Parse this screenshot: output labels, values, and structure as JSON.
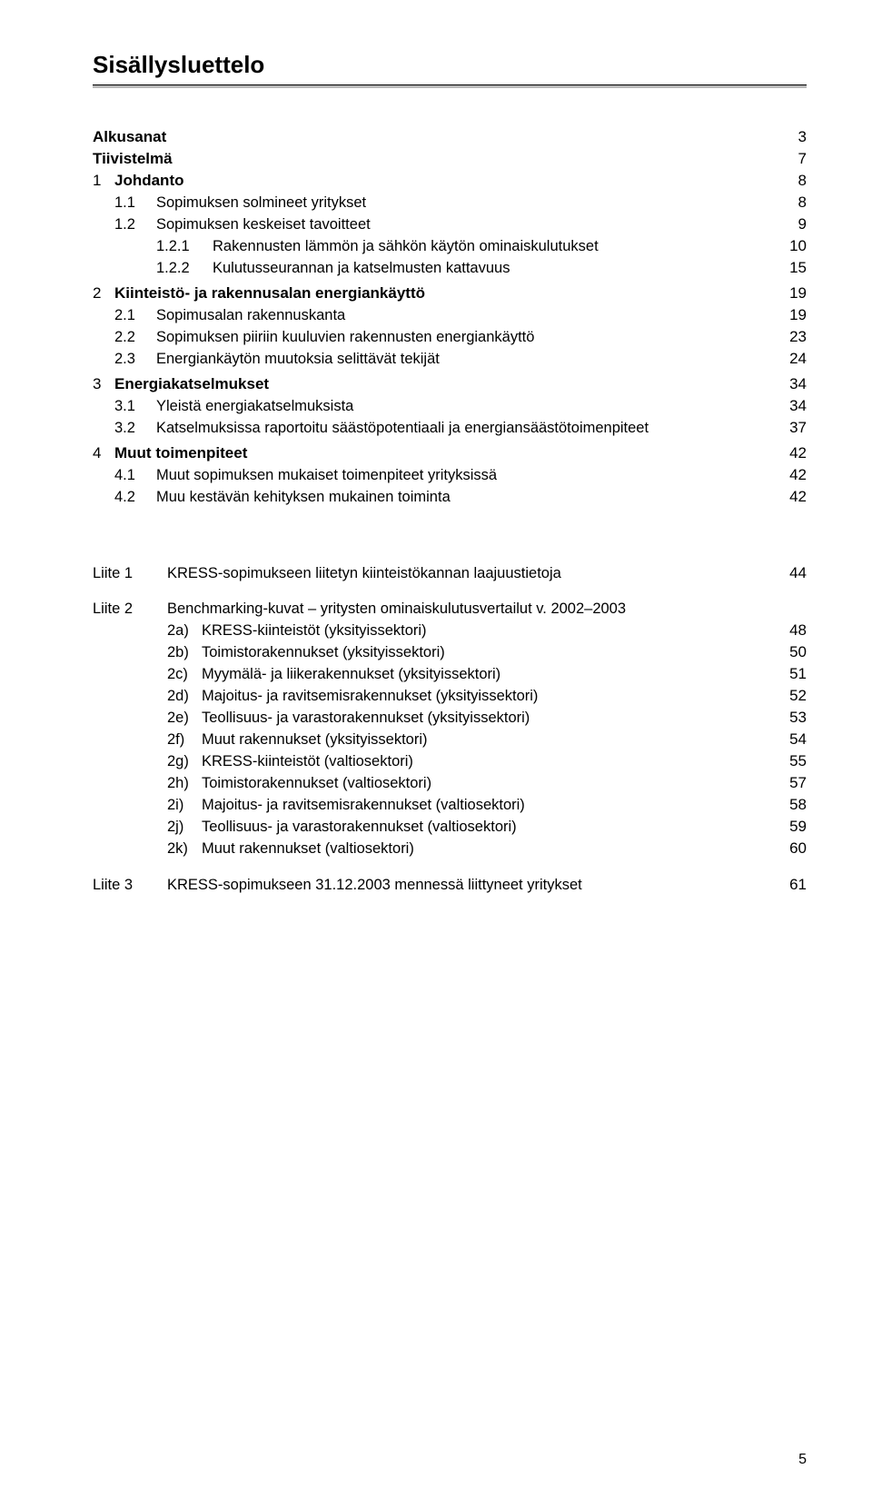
{
  "title": "Sisällysluettelo",
  "page_number": "5",
  "colors": {
    "background": "#ffffff",
    "text": "#000000",
    "rule_fill": "#b8b8b8",
    "rule_border": "#000000"
  },
  "typography": {
    "title_fontsize_pt": 20,
    "body_fontsize_pt": 12.5,
    "font_family": "Arial"
  },
  "toc": [
    {
      "type": "top",
      "label": "Alkusanat",
      "page": "3"
    },
    {
      "type": "top",
      "label": "Tiivistelmä",
      "page": "7"
    },
    {
      "type": "section",
      "num": "1",
      "label": "Johdanto",
      "page": "8"
    },
    {
      "type": "level2",
      "num": "1.1",
      "label": "Sopimuksen solmineet yritykset",
      "page": "8"
    },
    {
      "type": "level2",
      "num": "1.2",
      "label": "Sopimuksen keskeiset tavoitteet",
      "page": "9"
    },
    {
      "type": "level3",
      "num": "1.2.1",
      "label": "Rakennusten lämmön ja sähkön käytön ominaiskulutukset",
      "page": "10"
    },
    {
      "type": "level3",
      "num": "1.2.2",
      "label": "Kulutusseurannan ja katselmusten kattavuus",
      "page": "15"
    },
    {
      "type": "section",
      "num": "2",
      "label": "Kiinteistö- ja rakennusalan energiankäyttö",
      "page": "19"
    },
    {
      "type": "level2",
      "num": "2.1",
      "label": "Sopimusalan rakennuskanta",
      "page": "19"
    },
    {
      "type": "level2",
      "num": "2.2",
      "label": "Sopimuksen piiriin kuuluvien rakennusten energiankäyttö",
      "page": "23"
    },
    {
      "type": "level2",
      "num": "2.3",
      "label": "Energiankäytön muutoksia selittävät tekijät",
      "page": "24"
    },
    {
      "type": "section",
      "num": "3",
      "label": "Energiakatselmukset",
      "page": "34"
    },
    {
      "type": "level2",
      "num": "3.1",
      "label": "Yleistä energiakatselmuksista",
      "page": "34"
    },
    {
      "type": "level2",
      "num": "3.2",
      "label": "Katselmuksissa raportoitu säästöpotentiaali ja energiansäästötoimenpiteet",
      "page": "37"
    },
    {
      "type": "section",
      "num": "4",
      "label": "Muut toimenpiteet",
      "page": "42"
    },
    {
      "type": "level2",
      "num": "4.1",
      "label": "Muut sopimuksen mukaiset toimenpiteet yrityksissä",
      "page": "42"
    },
    {
      "type": "level2",
      "num": "4.2",
      "label": "Muu kestävän kehityksen mukainen toiminta",
      "page": "42"
    }
  ],
  "liite1": {
    "label": "Liite 1",
    "text": "KRESS-sopimukseen liitetyn kiinteistökannan laajuustietoja",
    "page": "44"
  },
  "liite2": {
    "label": "Liite 2",
    "text": "Benchmarking-kuvat – yritysten ominaiskulutusvertailut v. 2002–2003"
  },
  "liite2_items": [
    {
      "marker": "2a)",
      "text": "KRESS-kiinteistöt (yksityissektori)",
      "page": "48"
    },
    {
      "marker": "2b)",
      "text": "Toimistorakennukset (yksityissektori)",
      "page": "50"
    },
    {
      "marker": "2c)",
      "text": "Myymälä- ja liikerakennukset (yksityissektori)",
      "page": "51"
    },
    {
      "marker": "2d)",
      "text": "Majoitus- ja ravitsemisrakennukset (yksityissektori)",
      "page": "52"
    },
    {
      "marker": "2e)",
      "text": "Teollisuus- ja varastorakennukset (yksityissektori)",
      "page": "53"
    },
    {
      "marker": "2f)",
      "text": "Muut rakennukset (yksityissektori)",
      "page": "54"
    },
    {
      "marker": "2g)",
      "text": "KRESS-kiinteistöt (valtiosektori)",
      "page": "55"
    },
    {
      "marker": "2h)",
      "text": "Toimistorakennukset (valtiosektori)",
      "page": "57"
    },
    {
      "marker": "2i)",
      "text": "Majoitus- ja ravitsemisrakennukset (valtiosektori)",
      "page": "58"
    },
    {
      "marker": "2j)",
      "text": "Teollisuus- ja varastorakennukset (valtiosektori)",
      "page": "59"
    },
    {
      "marker": "2k)",
      "text": "Muut rakennukset (valtiosektori)",
      "page": "60"
    }
  ],
  "liite3": {
    "label": "Liite 3",
    "text": "KRESS-sopimukseen 31.12.2003 mennessä liittyneet yritykset",
    "page": "61"
  }
}
